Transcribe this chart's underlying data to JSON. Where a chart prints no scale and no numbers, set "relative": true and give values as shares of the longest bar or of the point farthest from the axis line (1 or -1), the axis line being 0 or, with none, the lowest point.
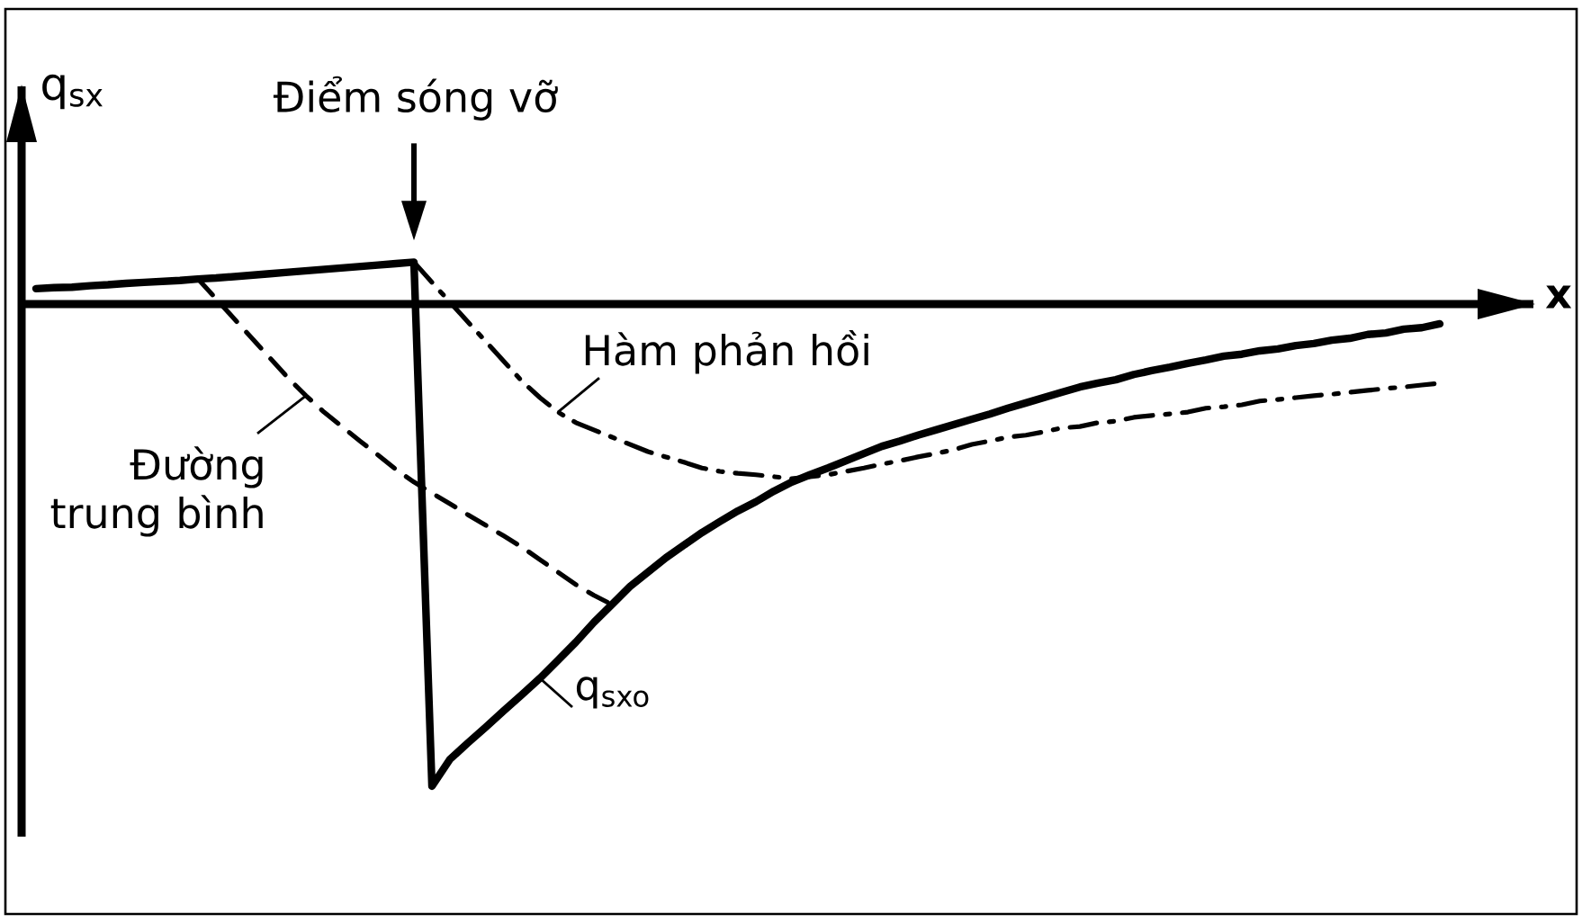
{
  "chart_data": {
    "type": "line",
    "relative": true,
    "xlabel": "x",
    "ylabel": "q$_{sx}$",
    "annotations": [
      "Điểm sóng vỡ"
    ],
    "categories": [
      null,
      null,
      null,
      null,
      null,
      null,
      null,
      null,
      null,
      null,
      null,
      null,
      null,
      null,
      null,
      null,
      null,
      null,
      null,
      null,
      null,
      null,
      null,
      null,
      null,
      null,
      null,
      null,
      null,
      null,
      null,
      null,
      null,
      null,
      null,
      null,
      null,
      null,
      null,
      null,
      null,
      null,
      null,
      null,
      null,
      null,
      null,
      null,
      null,
      null,
      null,
      null,
      null,
      null,
      null,
      null,
      null,
      null,
      null,
      null,
      null,
      null,
      null,
      null,
      null,
      null,
      null,
      null,
      null,
      null,
      null,
      null,
      null,
      null,
      null,
      null,
      null,
      null,
      null
    ],
    "series": [
      {
        "name": "q$_{sxo}$",
        "color": "#000000",
        "line_style": "solid",
        "values": [
          0.032,
          0.034,
          0.035,
          0.038,
          0.04,
          0.043,
          0.045,
          0.047,
          0.049,
          0.052,
          0.054,
          0.057,
          0.06,
          0.063,
          0.066,
          0.069,
          0.072,
          0.075,
          0.078,
          0.081,
          0.084,
          0.087,
          -1,
          -0.944,
          -0.91,
          -0.877,
          -0.843,
          -0.81,
          -0.776,
          -0.739,
          -0.701,
          -0.66,
          -0.623,
          -0.586,
          -0.556,
          -0.526,
          -0.5,
          -0.474,
          -0.451,
          -0.429,
          -0.41,
          -0.388,
          -0.369,
          -0.354,
          -0.34,
          -0.325,
          -0.31,
          -0.295,
          -0.284,
          -0.272,
          -0.261,
          -0.25,
          -0.239,
          -0.228,
          -0.216,
          -0.205,
          -0.194,
          -0.183,
          -0.172,
          -0.164,
          -0.157,
          -0.146,
          -0.138,
          -0.131,
          -0.123,
          -0.116,
          -0.108,
          -0.104,
          -0.097,
          -0.093,
          -0.086,
          -0.082,
          -0.075,
          -0.071,
          -0.063,
          -0.06,
          -0.052,
          -0.049,
          -0.041
        ]
      },
      {
        "name": "Hàm phản hồi",
        "color": "#000000",
        "line_style": "dashdot",
        "values": [
          null,
          null,
          null,
          null,
          null,
          null,
          null,
          null,
          null,
          null,
          null,
          null,
          null,
          null,
          null,
          null,
          null,
          null,
          null,
          null,
          null,
          0.087,
          0.045,
          0.004,
          -0.037,
          -0.078,
          -0.119,
          -0.16,
          -0.194,
          -0.224,
          -0.246,
          -0.261,
          -0.276,
          -0.291,
          -0.306,
          -0.317,
          -0.328,
          -0.34,
          -0.347,
          -0.351,
          -0.354,
          -0.358,
          -0.362,
          -0.358,
          -0.354,
          -0.347,
          -0.34,
          -0.332,
          -0.325,
          -0.317,
          -0.31,
          -0.302,
          -0.291,
          -0.284,
          -0.276,
          -0.272,
          -0.265,
          -0.257,
          -0.254,
          -0.246,
          -0.243,
          -0.235,
          -0.231,
          -0.228,
          -0.224,
          -0.216,
          -0.213,
          -0.209,
          -0.201,
          -0.198,
          -0.194,
          -0.19,
          -0.187,
          -0.183,
          -0.179,
          -0.175,
          -0.172,
          -0.168,
          -0.164
        ]
      },
      {
        "name": "Đường trung bình",
        "color": "#000000",
        "line_style": "dashed",
        "values": [
          null,
          null,
          null,
          null,
          null,
          null,
          null,
          null,
          null,
          0.052,
          0.011,
          -0.03,
          -0.071,
          -0.112,
          -0.153,
          -0.19,
          -0.224,
          -0.254,
          -0.284,
          -0.313,
          -0.343,
          -0.369,
          -0.392,
          -0.414,
          -0.437,
          -0.459,
          -0.481,
          -0.504,
          -0.53,
          -0.556,
          -0.582,
          -0.604,
          -0.623,
          null,
          null,
          null,
          null,
          null,
          null,
          null,
          null,
          null,
          null,
          null,
          null,
          null,
          null,
          null,
          null,
          null,
          null,
          null,
          null,
          null,
          null,
          null,
          null,
          null,
          null,
          null,
          null,
          null,
          null,
          null,
          null,
          null,
          null,
          null,
          null,
          null,
          null,
          null,
          null,
          null,
          null,
          null,
          null,
          null,
          null
        ]
      }
    ]
  }
}
